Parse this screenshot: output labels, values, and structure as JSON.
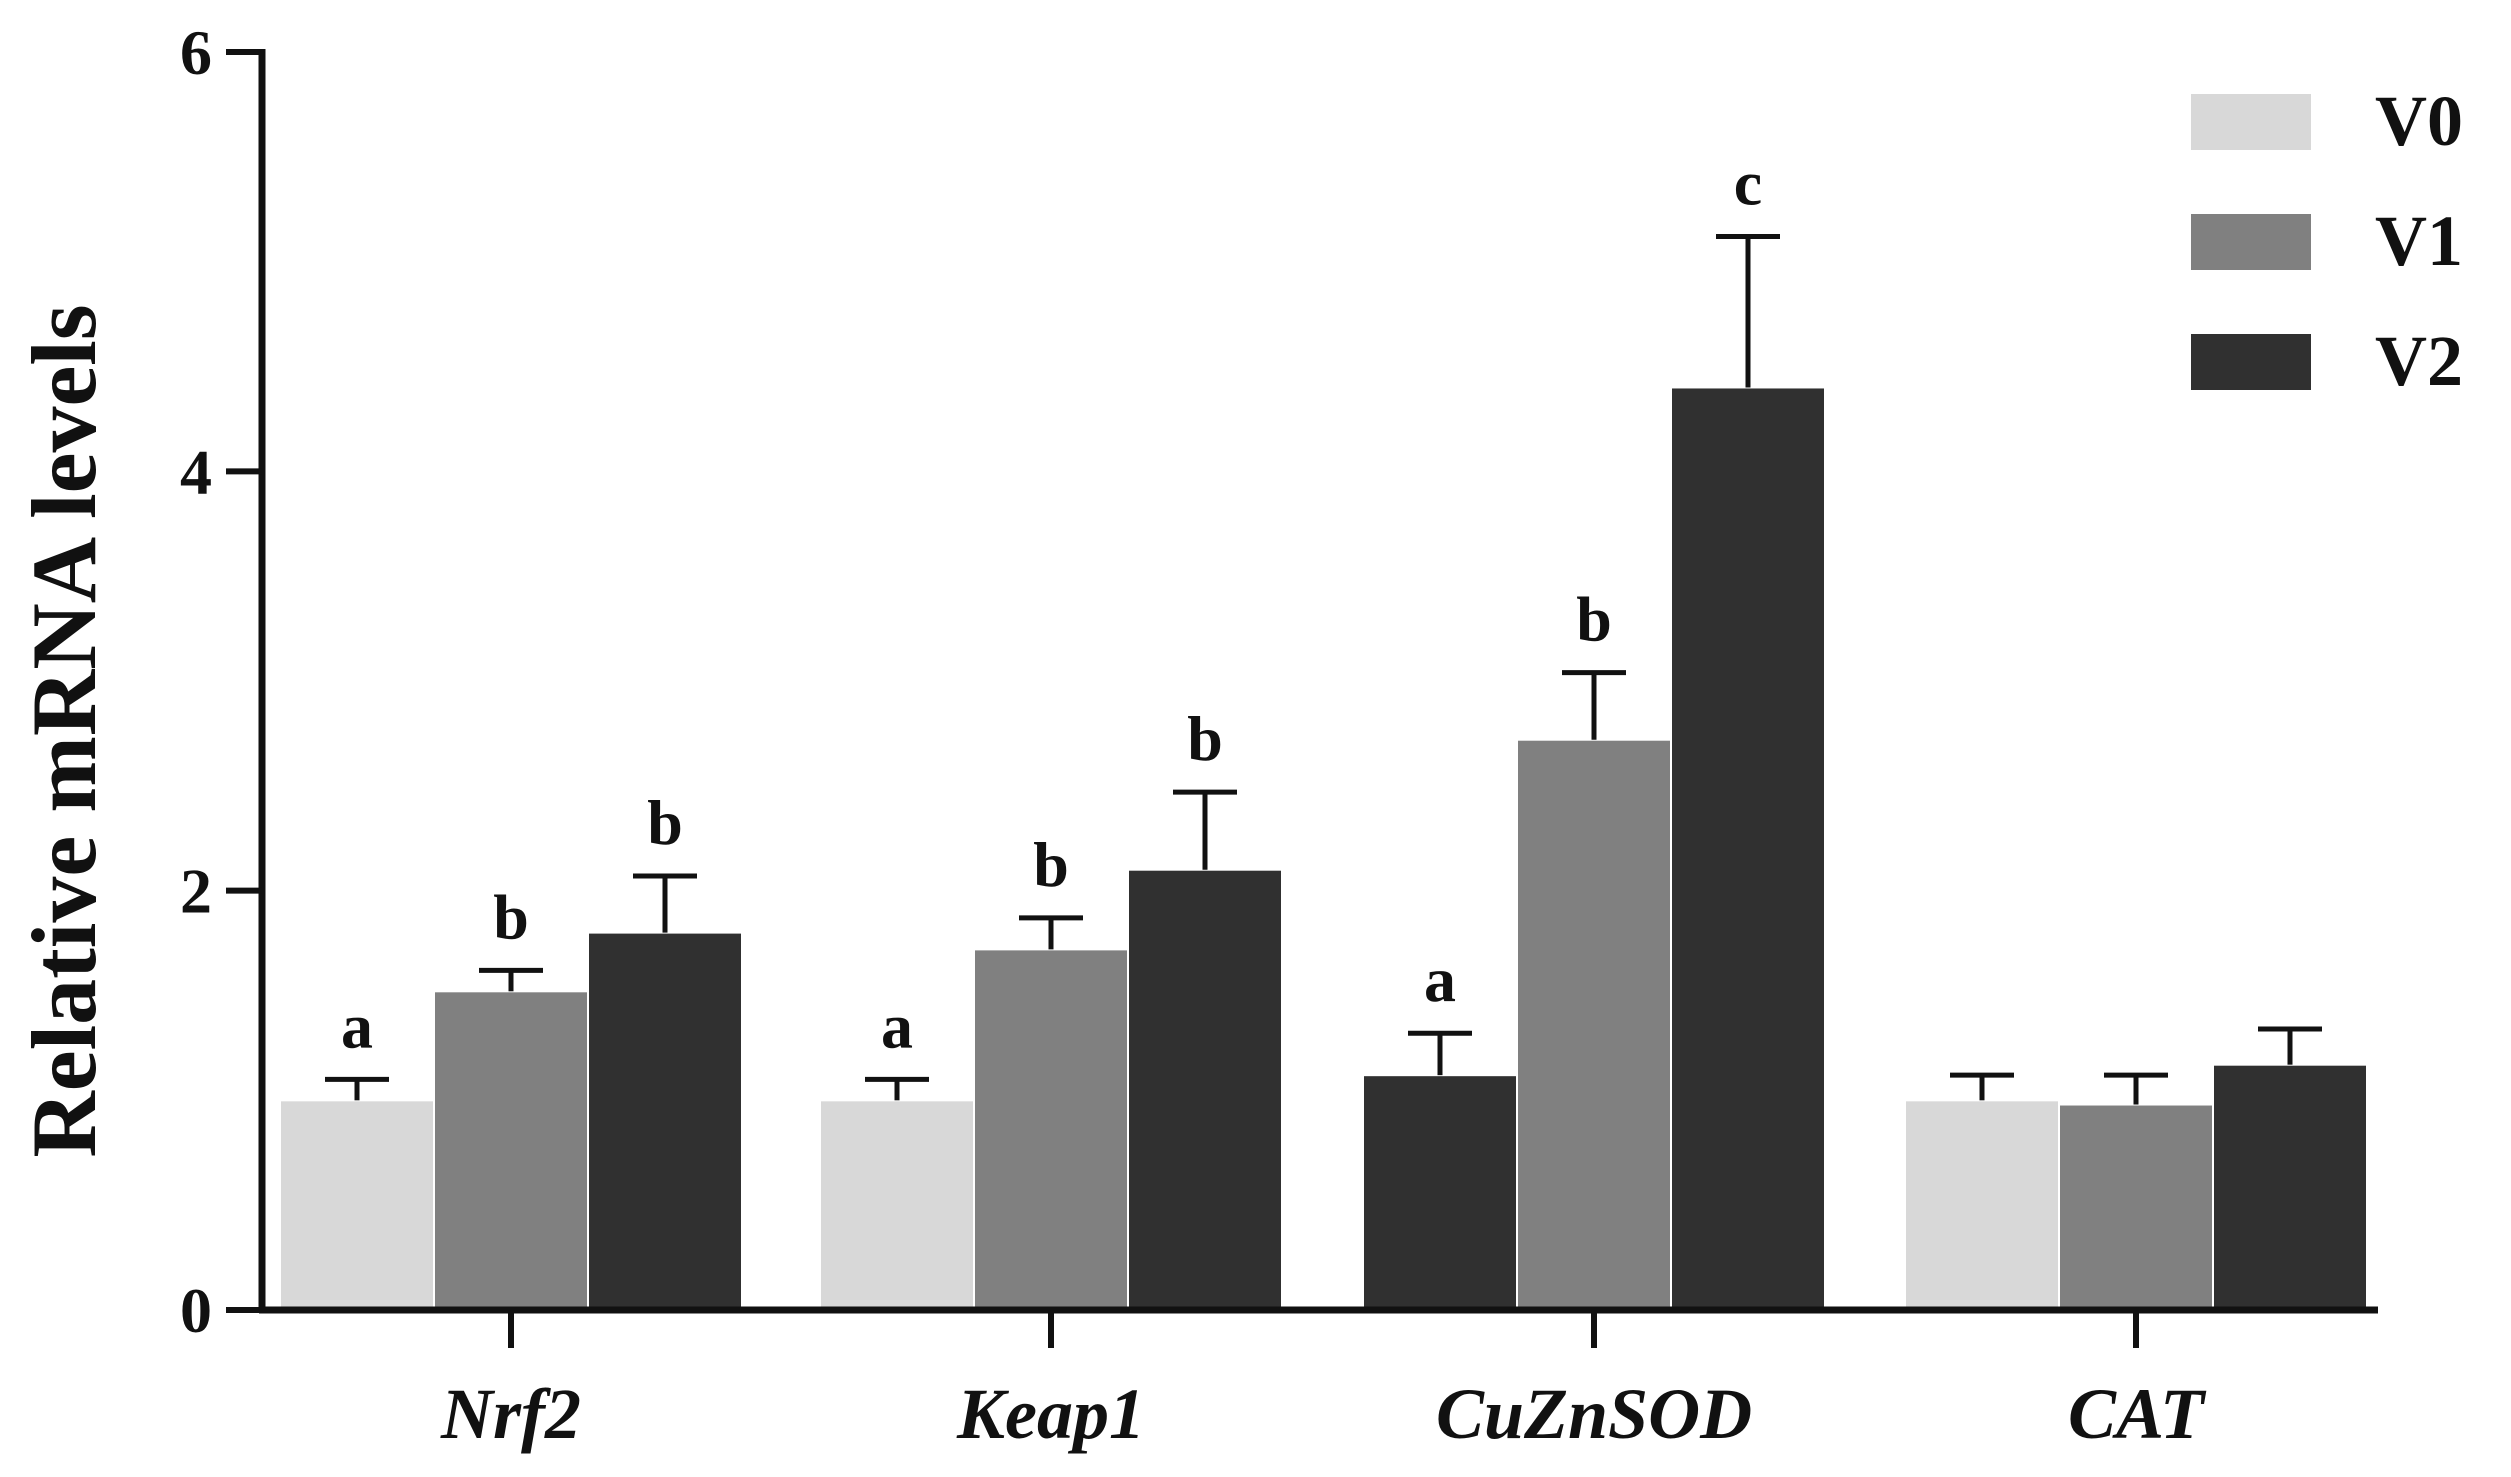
{
  "chart_data": {
    "type": "bar",
    "title": "",
    "xlabel": "",
    "ylabel": "Relative mRNA levels",
    "ylim": [
      0,
      6
    ],
    "yticks": [
      0,
      2,
      4,
      6
    ],
    "categories": [
      "Nrf2",
      "Keap1",
      "CuZnSOD",
      "CAT"
    ],
    "series": [
      {
        "name": "V0",
        "color": "#d8d8d8",
        "values": [
          1.0,
          1.0,
          1.12,
          1.0
        ],
        "errors": [
          0.1,
          0.1,
          0.2,
          0.12
        ],
        "sig": [
          "a",
          "a",
          "a",
          ""
        ]
      },
      {
        "name": "V1",
        "color": "#808080",
        "values": [
          1.52,
          1.72,
          2.72,
          0.98
        ],
        "errors": [
          0.1,
          0.15,
          0.32,
          0.14
        ],
        "sig": [
          "b",
          "b",
          "b",
          ""
        ]
      },
      {
        "name": "V2",
        "color": "#303030",
        "values": [
          1.8,
          2.1,
          4.4,
          1.17
        ],
        "errors": [
          0.27,
          0.37,
          0.72,
          0.17
        ],
        "sig": [
          "b",
          "b",
          "c",
          ""
        ]
      }
    ],
    "bar_overrides": [
      {
        "category_index": 2,
        "series_index": 0,
        "color": "#303030"
      }
    ],
    "legend_position": "top-right",
    "grid": false
  }
}
